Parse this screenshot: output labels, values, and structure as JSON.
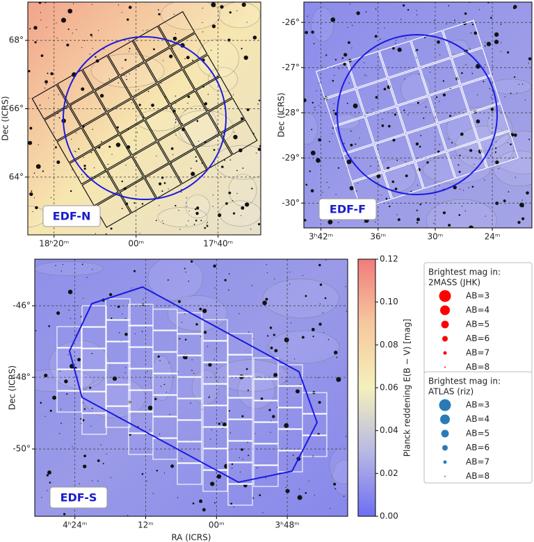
{
  "chart_data": [
    {
      "type": "skymap",
      "label": "EDF-N",
      "ylabel": "Dec (ICRS)",
      "xlim": [
        276.6,
        262.4
      ],
      "ylim": [
        62.31,
        69.12
      ],
      "xticks": [
        {
          "value": 275,
          "label": "18ʰ20ᵐ"
        },
        {
          "value": 270,
          "label": "00ᵐ"
        },
        {
          "value": 265,
          "label": "17ʰ40ᵐ"
        }
      ],
      "yticks": [
        {
          "value": 64,
          "label": "64°"
        },
        {
          "value": 66,
          "label": "66°"
        },
        {
          "value": 68,
          "label": "68°"
        }
      ],
      "grid": true,
      "background": [
        "#f2a48c",
        "#f6e6b0",
        "#e6e0cc"
      ]
    },
    {
      "type": "skymap",
      "label": "EDF-F",
      "ylabel": "Dec (ICRS)",
      "xlim": [
        55.95,
        49.96
      ],
      "ylim": [
        -30.55,
        -25.55
      ],
      "xticks": [
        {
          "value": 55.5,
          "label": "3ʰ42ᵐ"
        },
        {
          "value": 54,
          "label": "36ᵐ"
        },
        {
          "value": 52.5,
          "label": "30ᵐ"
        },
        {
          "value": 51,
          "label": "24ᵐ"
        }
      ],
      "yticks": [
        {
          "value": -30,
          "label": "-30°"
        },
        {
          "value": -29,
          "label": "-29°"
        },
        {
          "value": -28,
          "label": "-28°"
        },
        {
          "value": -27,
          "label": "-27°"
        },
        {
          "value": -26,
          "label": "-26°"
        }
      ],
      "grid": true,
      "background": [
        "#8c8cec",
        "#9a9ae8",
        "#a4a4e6"
      ]
    },
    {
      "type": "skymap",
      "label": "EDF-S",
      "ylabel": "Dec (ICRS)",
      "xlabel": "RA (ICRS)",
      "xlim": [
        67.7,
        54.44
      ],
      "ylim": [
        -51.88,
        -44.7
      ],
      "xticks": [
        {
          "value": 66,
          "label": "4ʰ24ᵐ"
        },
        {
          "value": 63,
          "label": "12ᵐ"
        },
        {
          "value": 60,
          "label": "00ᵐ"
        },
        {
          "value": 57,
          "label": "3ʰ48ᵐ"
        }
      ],
      "yticks": [
        {
          "value": -50,
          "label": "-50°"
        },
        {
          "value": -48,
          "label": "-48°"
        },
        {
          "value": -46,
          "label": "-46°"
        }
      ],
      "grid": true,
      "background": [
        "#9090ea",
        "#9a9ae8",
        "#8888ec"
      ]
    },
    {
      "type": "colorbar",
      "label": "Planck reddening  E(B − V) [mag]",
      "ylim": [
        0,
        0.12
      ],
      "yticks": [
        {
          "value": 0,
          "label": "0.00"
        },
        {
          "value": 0.02,
          "label": "0.02"
        },
        {
          "value": 0.04,
          "label": "0.04"
        },
        {
          "value": 0.06,
          "label": "0.06"
        },
        {
          "value": 0.08,
          "label": "0.08"
        },
        {
          "value": 0.1,
          "label": "0.10"
        },
        {
          "value": 0.12,
          "label": "0.12"
        }
      ],
      "colormap": [
        "#6e6ef2",
        "#b8b8e4",
        "#f4f0bc",
        "#f6c89e",
        "#f07c7c"
      ]
    },
    {
      "type": "legend",
      "title": "Brightest mag in:",
      "subtitle": "2MASS (JHK)",
      "color": "#ff0000",
      "entries": [
        "AB=3",
        "AB=4",
        "AB=5",
        "AB=6",
        "AB=7",
        "AB=8"
      ]
    },
    {
      "type": "legend",
      "title": "Brightest mag in:",
      "subtitle": "ATLAS (riz)",
      "color": "#2a7ab8",
      "entries": [
        "AB=3",
        "AB=4",
        "AB=5",
        "AB=6",
        "AB=7",
        "AB=8"
      ]
    }
  ]
}
